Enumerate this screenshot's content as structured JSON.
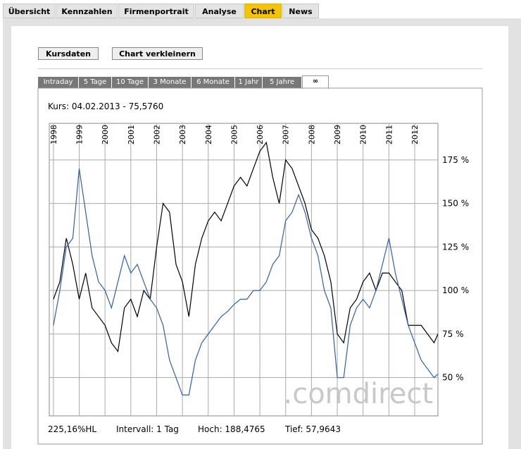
{
  "nav_tabs": [
    "Übersicht",
    "Kennzahlen",
    "Firmenportrait",
    "Analyse",
    "Chart",
    "News"
  ],
  "active_nav_tab": 4,
  "buttons": [
    "Kursdaten",
    "Chart verkleinern"
  ],
  "period_tabs": [
    "Intraday",
    "5 Tage",
    "10 Tage",
    "3 Monate",
    "6 Monate",
    "1 Jahr",
    "5 Jahre",
    "∞"
  ],
  "active_period_tab": 7,
  "chart_caption": "Kurs: 04.02.2013 - 75,5760",
  "watermark": ".comdirect",
  "footer": [
    "225,16%HL",
    "Intervall: 1 Tag",
    "Hoch: 188,4765",
    "Tief: 57,9643"
  ],
  "chart_data": {
    "type": "line",
    "x": [
      1998,
      1998.25,
      1998.5,
      1998.75,
      1999,
      1999.25,
      1999.5,
      1999.75,
      2000,
      2000.25,
      2000.5,
      2000.75,
      2001,
      2001.25,
      2001.5,
      2001.75,
      2002,
      2002.25,
      2002.5,
      2002.75,
      2003,
      2003.25,
      2003.5,
      2003.75,
      2004,
      2004.25,
      2004.5,
      2004.75,
      2005,
      2005.25,
      2005.5,
      2005.75,
      2006,
      2006.25,
      2006.5,
      2006.75,
      2007,
      2007.25,
      2007.5,
      2007.75,
      2008,
      2008.25,
      2008.5,
      2008.75,
      2009,
      2009.25,
      2009.5,
      2009.75,
      2010,
      2010.25,
      2010.5,
      2010.75,
      2011,
      2011.25,
      2011.5,
      2011.75,
      2012,
      2012.25,
      2012.5,
      2012.75,
      2012.9
    ],
    "xlim": [
      1997.84,
      2012.9
    ],
    "xticks": [
      1998,
      1999,
      2000,
      2001,
      2002,
      2003,
      2004,
      2005,
      2006,
      2007,
      2008,
      2009,
      2010,
      2011,
      2012
    ],
    "ylim": [
      28,
      196
    ],
    "yticks": [
      {
        "value": 50,
        "label": "50 %"
      },
      {
        "value": 75,
        "label": "75 %"
      },
      {
        "value": 100,
        "label": "100 %"
      },
      {
        "value": 125,
        "label": "125 %"
      },
      {
        "value": 150,
        "label": "150 %"
      },
      {
        "value": 175,
        "label": "175 %"
      }
    ],
    "grid": true,
    "series": [
      {
        "color": "#000000",
        "values": [
          95,
          105,
          130,
          115,
          95,
          110,
          90,
          85,
          80,
          70,
          65,
          90,
          95,
          85,
          100,
          95,
          125,
          150,
          145,
          115,
          105,
          85,
          115,
          130,
          140,
          145,
          140,
          150,
          160,
          165,
          160,
          170,
          180,
          185,
          165,
          150,
          175,
          170,
          160,
          150,
          135,
          130,
          120,
          105,
          75,
          70,
          90,
          95,
          105,
          110,
          100,
          110,
          110,
          105,
          100,
          80,
          80,
          80,
          75,
          70,
          75
        ]
      },
      {
        "color": "#2f5fb0",
        "values": [
          80,
          100,
          125,
          130,
          170,
          145,
          120,
          105,
          100,
          90,
          105,
          120,
          110,
          115,
          105,
          95,
          90,
          80,
          60,
          50,
          40,
          40,
          60,
          70,
          75,
          80,
          85,
          88,
          92,
          95,
          95,
          100,
          100,
          105,
          115,
          120,
          140,
          145,
          155,
          145,
          130,
          120,
          100,
          90,
          50,
          50,
          80,
          90,
          95,
          90,
          100,
          115,
          130,
          110,
          95,
          80,
          70,
          60,
          55,
          50,
          52
        ]
      }
    ]
  }
}
